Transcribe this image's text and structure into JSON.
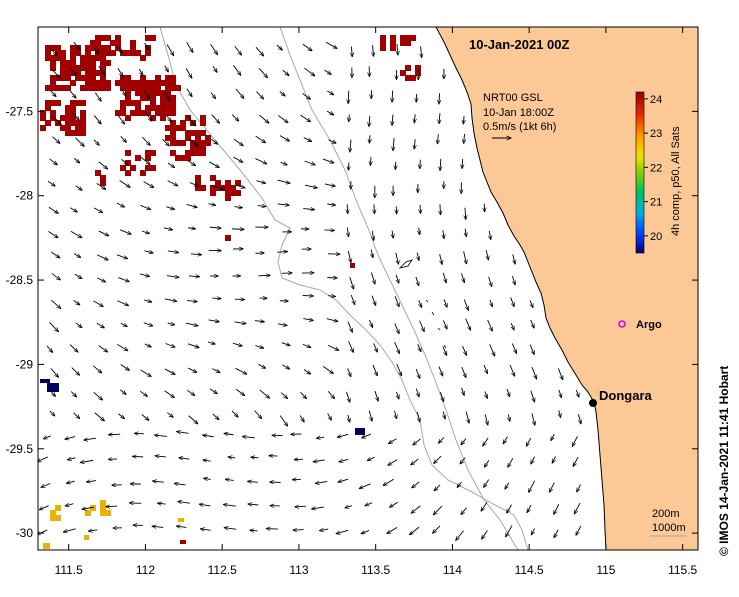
{
  "map": {
    "title": "10-Jan-2021 00Z",
    "product_lines": [
      "NRT00 GSL",
      "10-Jan 18:00Z",
      "0.5m/s (1kt 6h)"
    ],
    "colorbar_label": "4h comp, p50, All Sats",
    "colorbar_ticks": [
      "24",
      "23",
      "22",
      "21",
      "20"
    ],
    "colorbar_range": [
      19.5,
      24.2
    ],
    "credit": "© IMOS 14-Jan-2021 11:41 Hobart",
    "lon_ticks": [
      "111.5",
      "112",
      "112.5",
      "113",
      "113.5",
      "114",
      "114.5",
      "115",
      "115.5"
    ],
    "lat_ticks": [
      "-27.5",
      "-28",
      "-28.5",
      "-29",
      "-29.5",
      "-30"
    ],
    "lon_range": [
      111.3,
      115.6
    ],
    "lat_range": [
      -27.0,
      -30.1
    ],
    "places": [
      {
        "name": "Dongara",
        "lon": 114.93,
        "lat": -29.25
      },
      {
        "name": "Argo",
        "lon": 115.1,
        "lat": -28.82
      }
    ],
    "isobaths": [
      "200m",
      "1000m"
    ],
    "colors": {
      "land": "#FCC896",
      "sst_hot": "#A00000",
      "sst_cold": "#000060",
      "sst_mid": "#F0B000",
      "argo": "#E000E0",
      "isobath": "#A8A8A8"
    }
  }
}
